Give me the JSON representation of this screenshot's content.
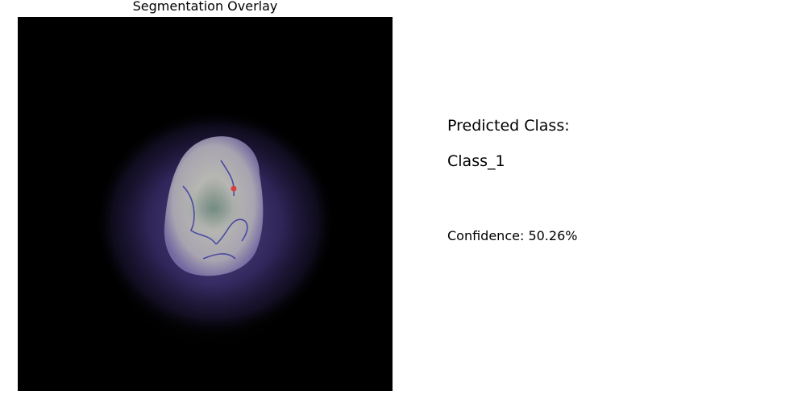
{
  "overlay": {
    "title": "Segmentation Overlay"
  },
  "prediction": {
    "heading": "Predicted Class:",
    "class_name": "Class_1",
    "confidence_text": "Confidence: 50.26%"
  },
  "colors": {
    "background": "#ffffff",
    "image_background": "#000000",
    "overlay_tint": "#5a4a9a",
    "lesion": "#b8b8b4",
    "vessel": "#3a3aa0",
    "marker": "#d84040"
  }
}
